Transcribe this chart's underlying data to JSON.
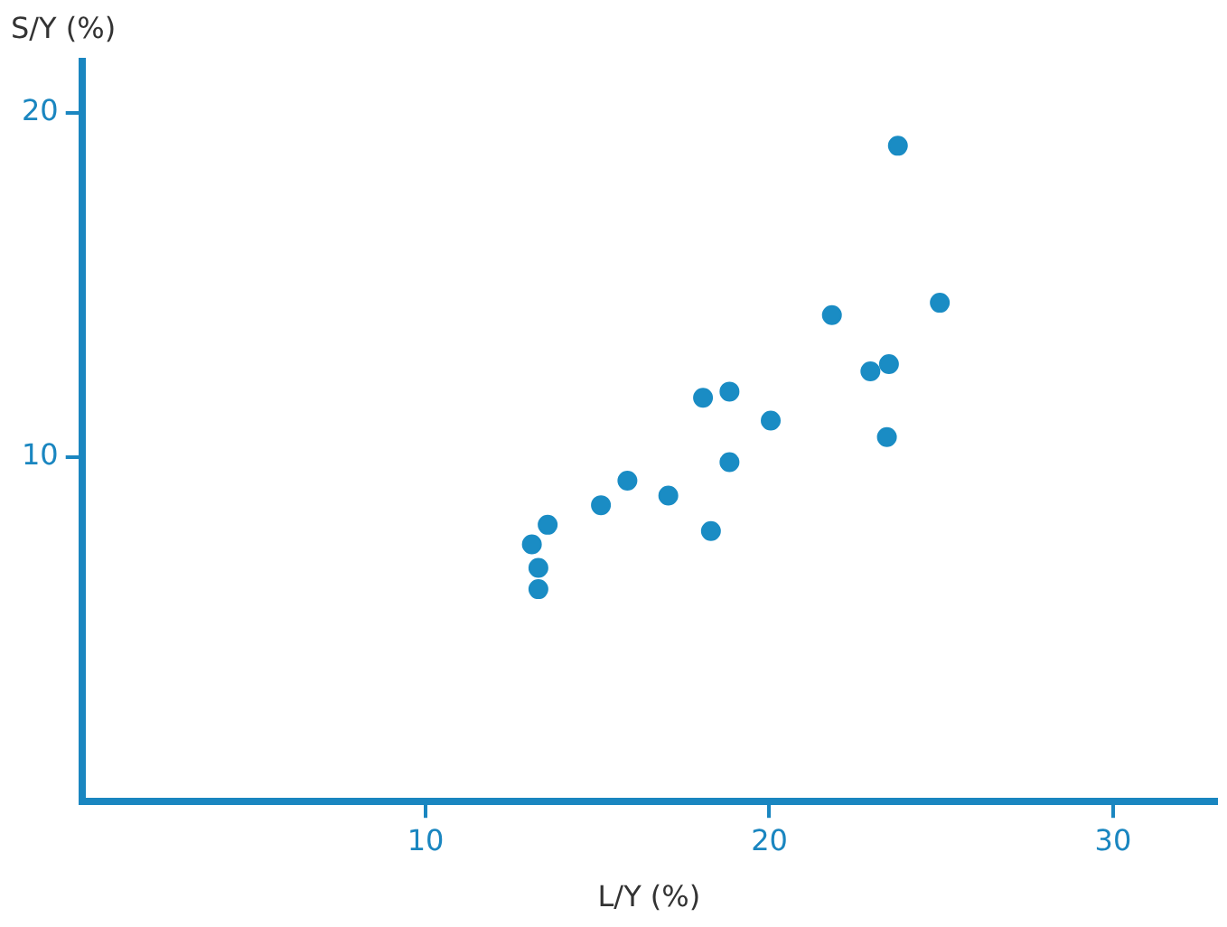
{
  "chart_data": {
    "type": "scatter",
    "xlabel": "L/Y (%)",
    "ylabel": "S/Y (%)",
    "x": [
      23.74,
      24.96,
      21.82,
      22.94,
      23.48,
      23.42,
      18.07,
      18.84,
      20.04,
      18.84,
      15.87,
      17.06,
      15.1,
      18.3,
      13.55,
      13.09,
      13.28,
      13.28
    ],
    "values": [
      19.05,
      14.49,
      14.13,
      12.5,
      12.71,
      10.59,
      11.73,
      11.91,
      11.07,
      9.86,
      9.32,
      8.89,
      8.61,
      7.86,
      8.04,
      7.47,
      6.79,
      6.17
    ],
    "color": "#1a8cc4",
    "marker": "circle",
    "grid": false,
    "legend": false,
    "xlim": [
      0,
      33
    ],
    "ylim": [
      0,
      21.5
    ],
    "xticks": [
      10,
      20,
      30
    ],
    "yticks": [
      10,
      20
    ]
  }
}
